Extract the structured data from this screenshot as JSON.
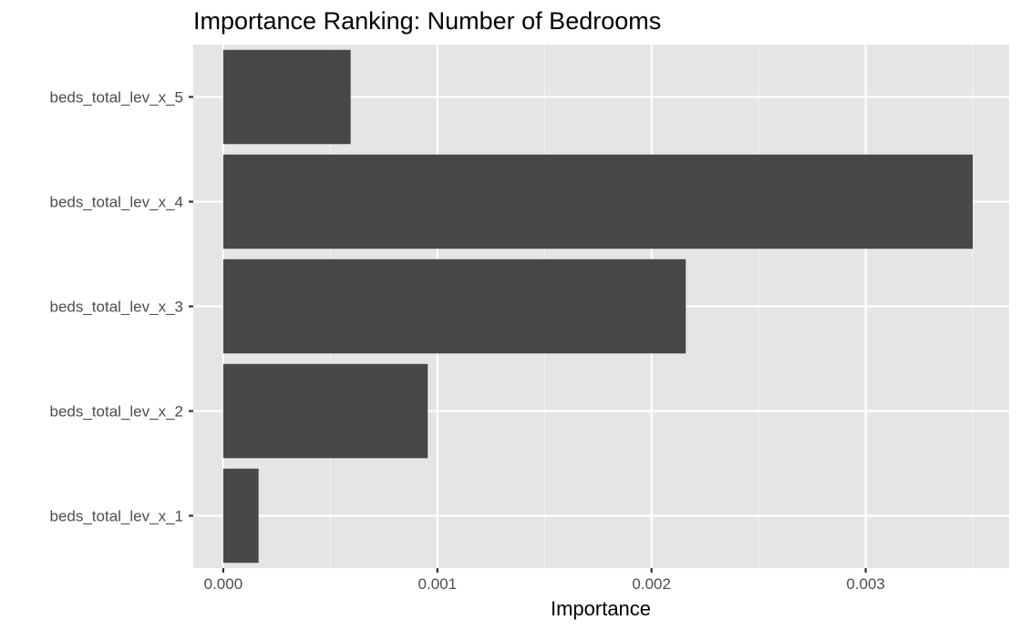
{
  "chart_data": {
    "type": "bar",
    "orientation": "horizontal",
    "title": "Importance Ranking: Number of Bedrooms",
    "xlabel": "Importance",
    "ylabel": "",
    "categories": [
      "beds_total_lev_x_1",
      "beds_total_lev_x_2",
      "beds_total_lev_x_3",
      "beds_total_lev_x_4",
      "beds_total_lev_x_5"
    ],
    "values": [
      0.000165,
      0.000955,
      0.00216,
      0.0035,
      0.000595
    ],
    "xlim": [
      -0.00014,
      0.00367
    ],
    "xticks": [
      0,
      0.001,
      0.002,
      0.003
    ],
    "xtick_labels": [
      "0.000",
      "0.001",
      "0.002",
      "0.003"
    ],
    "grid": true,
    "legend": "none",
    "colors": {
      "bar": "#484848",
      "panel": "#e5e5e5",
      "grid_major": "#ffffff",
      "grid_minor": "#f2f2f2",
      "tick_text": "#4d4d4d",
      "tick_mark": "#333333"
    }
  }
}
